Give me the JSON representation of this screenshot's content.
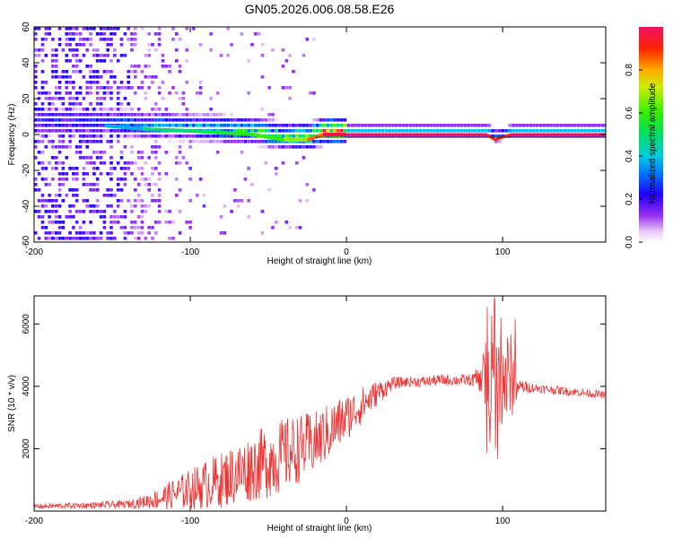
{
  "title": "GN05.2026.006.08.58.E26",
  "chart_data": [
    {
      "type": "heatmap",
      "xlabel": "Height of straight line (km)",
      "ylabel": "Frequency (Hz)",
      "xlim": [
        -200,
        166
      ],
      "ylim": [
        -60,
        60
      ],
      "xticks": [
        -200,
        -100,
        0,
        100
      ],
      "yticks": [
        -60,
        -40,
        -20,
        0,
        20,
        40,
        60
      ],
      "colorbar": {
        "label": "Normalized spectral amplitude",
        "range": [
          0,
          1
        ],
        "ticks": [
          "0.0",
          "0.2",
          "0.4",
          "0.6",
          "0.8"
        ]
      },
      "ridge": [
        {
          "x": -155,
          "y": 5,
          "amp": 0.3
        },
        {
          "x": -130,
          "y": 3,
          "amp": 0.45
        },
        {
          "x": -100,
          "y": 2,
          "amp": 0.5
        },
        {
          "x": -80,
          "y": 1,
          "amp": 0.55
        },
        {
          "x": -60,
          "y": 0,
          "amp": 0.6
        },
        {
          "x": -40,
          "y": -3,
          "amp": 0.6
        },
        {
          "x": -25,
          "y": -3,
          "amp": 0.75
        },
        {
          "x": -15,
          "y": 0,
          "amp": 0.95
        },
        {
          "x": 0,
          "y": 0,
          "amp": 1.0
        },
        {
          "x": 90,
          "y": 0,
          "amp": 1.0
        },
        {
          "x": 95,
          "y": -3,
          "amp": 0.8
        },
        {
          "x": 105,
          "y": 0,
          "amp": 1.0
        },
        {
          "x": 166,
          "y": 0,
          "amp": 1.0
        }
      ]
    },
    {
      "type": "line",
      "xlabel": "Height of straight line (km)",
      "ylabel": "SNR (10 * v/v)",
      "xlim": [
        -200,
        166
      ],
      "ylim": [
        0,
        6900
      ],
      "xticks": [
        -200,
        -100,
        0,
        100
      ],
      "yticks": [
        2000,
        4000,
        6000
      ],
      "color": "#ee3333",
      "series": [
        {
          "name": "SNR",
          "x": [
            -200,
            -180,
            -160,
            -140,
            -130,
            -120,
            -110,
            -100,
            -90,
            -80,
            -70,
            -60,
            -50,
            -40,
            -30,
            -20,
            -10,
            0,
            10,
            20,
            30,
            40,
            50,
            60,
            70,
            80,
            85,
            90,
            95,
            100,
            105,
            110,
            120,
            130,
            140,
            150,
            160,
            166
          ],
          "y": [
            150,
            170,
            190,
            220,
            300,
            400,
            550,
            700,
            850,
            1000,
            1200,
            1400,
            1600,
            1800,
            2000,
            2200,
            2600,
            3000,
            3400,
            3800,
            4100,
            4150,
            4150,
            4200,
            4200,
            4200,
            4250,
            4300,
            4300,
            4200,
            4300,
            4000,
            3950,
            3900,
            3850,
            3800,
            3750,
            3700
          ],
          "noise": [
            80,
            90,
            100,
            130,
            200,
            350,
            500,
            650,
            800,
            900,
            1000,
            1100,
            1200,
            1200,
            1100,
            1000,
            900,
            750,
            600,
            400,
            200,
            170,
            170,
            180,
            180,
            190,
            400,
            1300,
            1400,
            1600,
            1500,
            250,
            150,
            140,
            140,
            130,
            130,
            120
          ]
        }
      ]
    }
  ]
}
